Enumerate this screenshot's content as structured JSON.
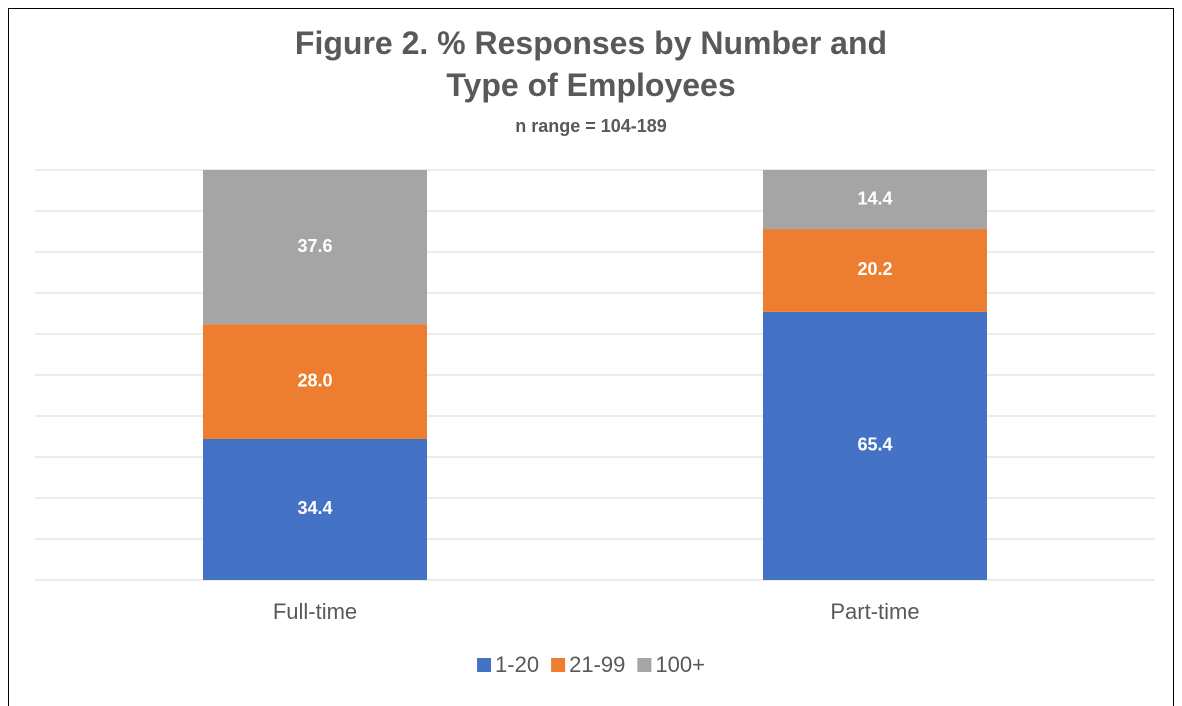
{
  "chart_data": {
    "type": "stacked_bar",
    "title": "Figure 2. % Responses by Number and Type of Employees",
    "subtitle": "n range = 104-189",
    "categories": [
      "Full-time",
      "Part-time"
    ],
    "series": [
      {
        "name": "1-20",
        "color": "#4472c4",
        "values": [
          34.4,
          65.4
        ],
        "value_labels": [
          "34.4",
          "65.4"
        ]
      },
      {
        "name": "21-99",
        "color": "#ed7d31",
        "values": [
          28.0,
          20.2
        ],
        "value_labels": [
          "28.0",
          "20.2"
        ]
      },
      {
        "name": "100+",
        "color": "#a5a5a5",
        "values": [
          37.6,
          14.4
        ],
        "value_labels": [
          "37.6",
          "14.4"
        ]
      }
    ],
    "ylim": [
      0,
      100
    ],
    "yticks": [
      0,
      10,
      20,
      30,
      40,
      50,
      60,
      70,
      80,
      90,
      100
    ],
    "grid": true,
    "legend": "bottom"
  }
}
